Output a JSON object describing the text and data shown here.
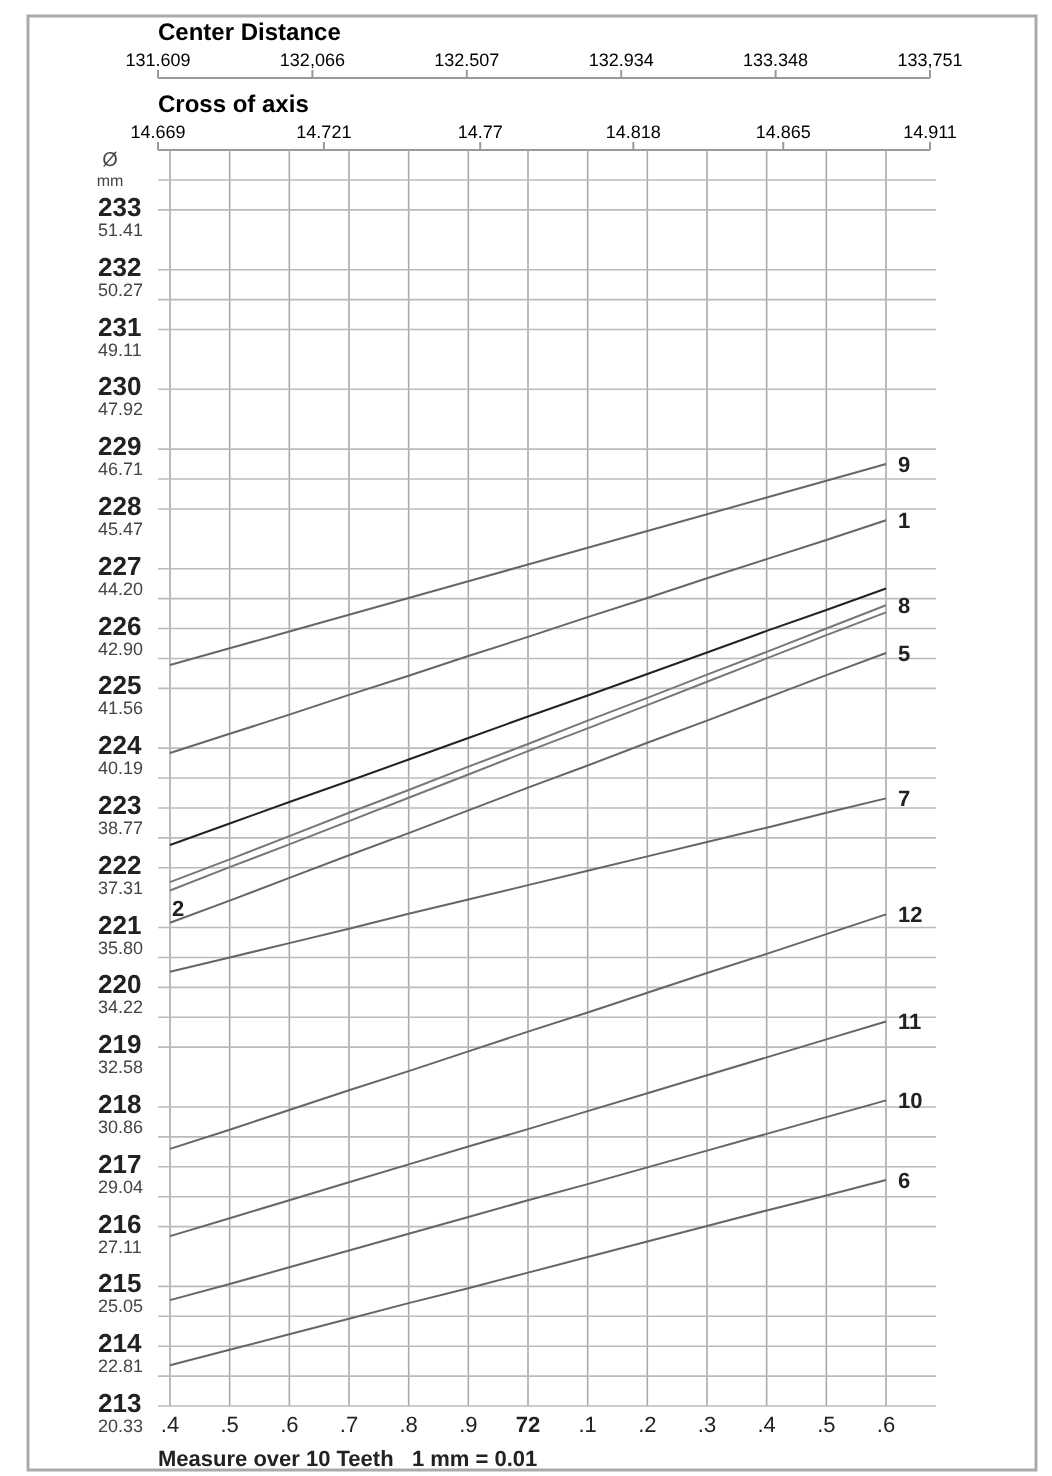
{
  "chart_data": {
    "type": "line",
    "title": "Center Distance",
    "xlabel": "Measure over 10 Teeth   1 mm = 0.01",
    "ylabel": "Ø mm",
    "x2label": "Cross of axis",
    "categories": [
      ".4",
      ".5",
      ".6",
      ".7",
      ".8",
      ".9",
      "72",
      ".1",
      ".2",
      ".3",
      ".4",
      ".5",
      ".6"
    ],
    "x2lim": [
      14.669,
      14.911
    ],
    "x2ticks": [
      14.669,
      14.721,
      14.77,
      14.818,
      14.865,
      14.911
    ],
    "ylim": [
      213,
      233.5
    ],
    "yticks": [
      233,
      232,
      231,
      230,
      229,
      228,
      227,
      226,
      225,
      224,
      223,
      222,
      221,
      220,
      219,
      218,
      217,
      216,
      215,
      214,
      213,
      {
        "value": 233.5,
        "label": null
      },
      {
        "value": 231.5,
        "label": null
      },
      {
        "value": 228.5,
        "label": null
      },
      {
        "value": 226.5,
        "label": null
      },
      {
        "value": 225.5,
        "label": null
      },
      {
        "value": 223.5,
        "label": null
      },
      {
        "value": 222.5,
        "label": null
      },
      {
        "value": 220.5,
        "label": null
      },
      {
        "value": 219.5,
        "label": null
      },
      {
        "value": 217.5,
        "label": null
      },
      {
        "value": 216.5,
        "label": null
      },
      {
        "value": 214.5,
        "label": null
      },
      {
        "value": 213.5,
        "label": null
      }
    ],
    "grid": true,
    "marker": "none",
    "line_style": "solid",
    "series": [
      {
        "name": "9",
        "color": "#666666",
        "values": [
          225.39,
          225.67,
          225.95,
          226.23,
          226.51,
          226.79,
          227.07,
          227.35,
          227.63,
          227.91,
          228.19,
          228.47,
          228.75
        ]
      },
      {
        "name": "1",
        "color": "#666666",
        "values": [
          223.92,
          224.24,
          224.56,
          224.89,
          225.21,
          225.54,
          225.86,
          226.19,
          226.51,
          226.84,
          227.16,
          227.48,
          227.81
        ]
      },
      {
        "color": "#222222",
        "values": [
          222.38,
          222.74,
          223.1,
          223.45,
          223.81,
          224.17,
          224.53,
          224.88,
          225.24,
          225.6,
          225.96,
          226.31,
          226.67
        ]
      },
      {
        "name": "8",
        "color": "#777777",
        "values": [
          221.76,
          222.14,
          222.53,
          222.92,
          223.3,
          223.69,
          224.07,
          224.46,
          224.84,
          225.23,
          225.61,
          226.0,
          226.39
        ]
      },
      {
        "color": "#777777",
        "values": [
          221.62,
          222.01,
          222.39,
          222.78,
          223.17,
          223.56,
          223.95,
          224.33,
          224.72,
          225.11,
          225.5,
          225.89,
          226.27
        ]
      },
      {
        "name": "5",
        "color": "#666666",
        "values": [
          221.08,
          221.45,
          221.83,
          222.21,
          222.58,
          222.96,
          223.34,
          223.71,
          224.09,
          224.46,
          224.84,
          225.22,
          225.59
        ]
      },
      {
        "name": "7",
        "color": "#666666",
        "values": [
          220.26,
          220.5,
          220.74,
          220.98,
          221.23,
          221.47,
          221.71,
          221.95,
          222.19,
          222.43,
          222.67,
          222.92,
          223.16
        ]
      },
      {
        "name": "12",
        "color": "#666666",
        "values": [
          217.3,
          217.62,
          217.95,
          218.28,
          218.6,
          218.93,
          219.26,
          219.58,
          219.91,
          220.24,
          220.56,
          220.89,
          221.22
        ]
      },
      {
        "name": "11",
        "color": "#666666",
        "values": [
          215.84,
          216.14,
          216.44,
          216.74,
          217.04,
          217.34,
          217.63,
          217.93,
          218.23,
          218.53,
          218.83,
          219.13,
          219.43
        ]
      },
      {
        "name": "10",
        "color": "#666666",
        "values": [
          214.77,
          215.04,
          215.32,
          215.6,
          215.88,
          216.16,
          216.44,
          216.71,
          216.99,
          217.27,
          217.55,
          217.83,
          218.11
        ]
      },
      {
        "name": "6",
        "color": "#666666",
        "values": [
          213.68,
          213.94,
          214.2,
          214.46,
          214.72,
          214.97,
          215.23,
          215.49,
          215.75,
          216.01,
          216.27,
          216.52,
          216.78
        ]
      }
    ],
    "annotations": [
      "131.609",
      "132,066",
      "132.507",
      "132.934",
      "133.348",
      "133,751",
      {
        "text": "2",
        "x": ".4",
        "y": 221.62
      },
      "51.41",
      "50.27",
      "49.11",
      "47.92",
      "46.71",
      "45.47",
      "44.20",
      "42.90",
      "41.56",
      "40.19",
      "38.77",
      "37.31",
      "35.80",
      "34.22",
      "32.58",
      "30.86",
      "29.04",
      "27.11",
      "25.05",
      "22.81",
      "20.33"
    ]
  }
}
